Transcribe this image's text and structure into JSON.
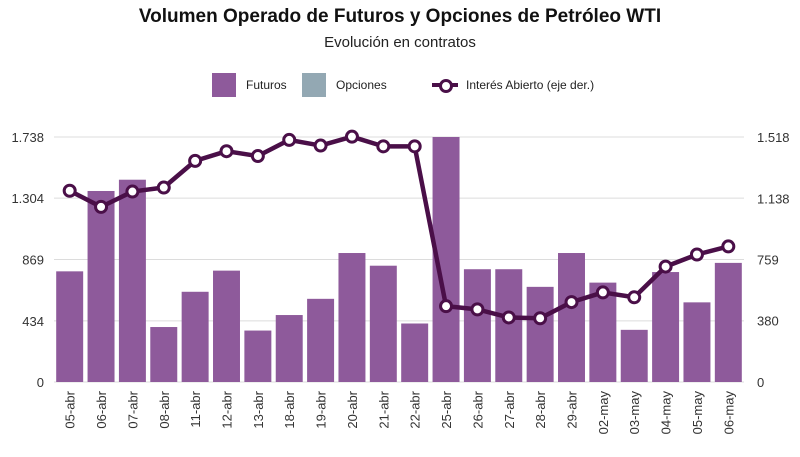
{
  "chart_data": {
    "type": "bar",
    "title": "Volumen Operado de Futuros y Opciones de Petróleo WTI",
    "subtitle": "Evolución en contratos",
    "categories": [
      "05-abr",
      "06-abr",
      "07-abr",
      "08-abr",
      "11-abr",
      "12-abr",
      "13-abr",
      "18-abr",
      "19-abr",
      "20-abr",
      "21-abr",
      "22-abr",
      "25-abr",
      "26-abr",
      "27-abr",
      "28-abr",
      "29-abr",
      "02-may",
      "03-may",
      "04-may",
      "05-may",
      "06-may"
    ],
    "series": [
      {
        "name": "Futuros",
        "kind": "bar",
        "color": "#8e5a9b",
        "axis": "left",
        "values": [
          785,
          1355,
          1435,
          390,
          640,
          790,
          365,
          475,
          590,
          915,
          825,
          415,
          1738,
          800,
          800,
          675,
          915,
          705,
          370,
          780,
          565,
          845
        ]
      },
      {
        "name": "Opciones",
        "kind": "bar",
        "color": "#93a8b3",
        "axis": "left",
        "values": [
          0,
          0,
          0,
          0,
          0,
          0,
          0,
          0,
          0,
          0,
          0,
          0,
          0,
          0,
          0,
          0,
          0,
          0,
          0,
          0,
          0,
          0
        ]
      },
      {
        "name": "Interés Abierto (eje der.)",
        "kind": "line",
        "color": "#4a0f48",
        "axis": "right",
        "values": [
          1185,
          1085,
          1180,
          1205,
          1370,
          1430,
          1400,
          1500,
          1465,
          1520,
          1460,
          1460,
          470,
          450,
          400,
          395,
          495,
          555,
          525,
          715,
          790,
          840
        ]
      }
    ],
    "y_left": {
      "ticks": [
        0,
        434,
        869,
        1304,
        1738
      ],
      "tick_labels": [
        "0",
        "434",
        "869",
        "1.304",
        "1.738"
      ],
      "range": [
        0,
        1738
      ]
    },
    "y_right": {
      "ticks": [
        0,
        380,
        759,
        1138,
        1518
      ],
      "tick_labels": [
        "0",
        "380",
        "759",
        "1.138",
        "1.518"
      ],
      "range": [
        0,
        1518
      ]
    },
    "grid": true,
    "legend_position": "top"
  }
}
